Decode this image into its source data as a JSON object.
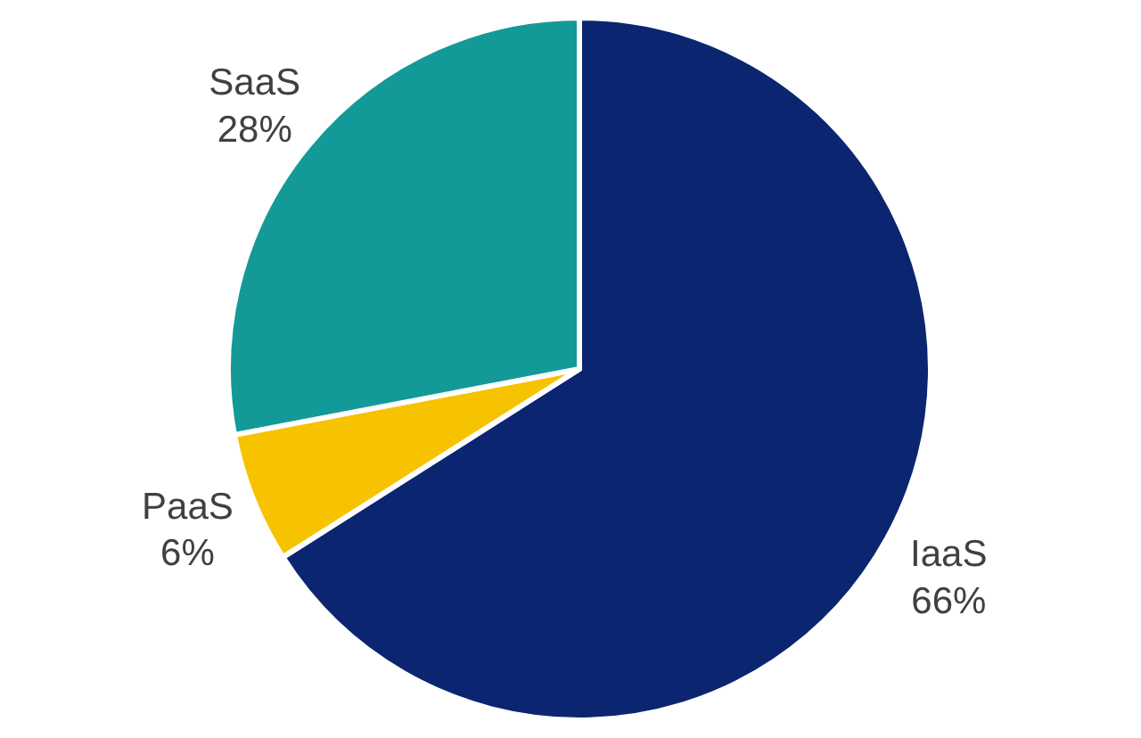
{
  "chart_data": {
    "type": "pie",
    "categories": [
      "IaaS",
      "PaaS",
      "SaaS"
    ],
    "values": [
      66,
      6,
      28
    ],
    "colors": [
      "#0b2570",
      "#f7c200",
      "#139a98"
    ],
    "value_labels": [
      "66%",
      "6%",
      "28%"
    ],
    "legend": false
  }
}
